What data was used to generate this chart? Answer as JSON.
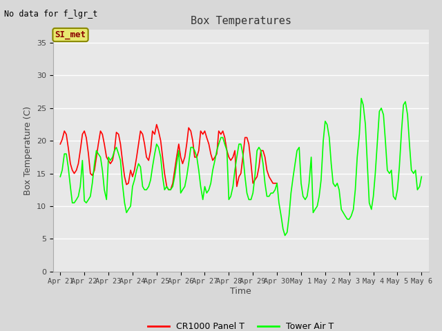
{
  "title": "Box Temperatures",
  "no_data_text": "No data for f_lgr_t",
  "station_label": "SI_met",
  "ylabel": "Box Temperature (C)",
  "xlabel": "Time",
  "ylim": [
    0,
    37
  ],
  "yticks": [
    0,
    5,
    10,
    15,
    20,
    25,
    30,
    35
  ],
  "fig_bg_color": "#d8d8d8",
  "plot_bg_color": "#e8e8e8",
  "grid_color": "white",
  "legend_entries": [
    "CR1000 Panel T",
    "Tower Air T"
  ],
  "x_tick_labels": [
    "Apr 21",
    "Apr 22",
    "Apr 23",
    "Apr 24",
    "Apr 25",
    "Apr 26",
    "Apr 27",
    "Apr 28",
    "Apr 29",
    "Apr 30",
    "May 1",
    "May 2",
    "May 3",
    "May 4",
    "May 5",
    "May 6"
  ],
  "red_x": [
    0.0,
    0.08,
    0.17,
    0.25,
    0.33,
    0.42,
    0.5,
    0.58,
    0.67,
    0.75,
    0.83,
    0.92,
    1.0,
    1.08,
    1.17,
    1.25,
    1.33,
    1.42,
    1.5,
    1.58,
    1.67,
    1.75,
    1.83,
    1.92,
    2.0,
    2.08,
    2.17,
    2.25,
    2.33,
    2.42,
    2.5,
    2.58,
    2.67,
    2.75,
    2.83,
    2.92,
    3.0,
    3.08,
    3.17,
    3.25,
    3.33,
    3.42,
    3.5,
    3.58,
    3.67,
    3.75,
    3.83,
    3.92,
    4.0,
    4.08,
    4.17,
    4.25,
    4.33,
    4.42,
    4.5,
    4.58,
    4.67,
    4.75,
    4.83,
    4.92,
    5.0,
    5.08,
    5.17,
    5.25,
    5.33,
    5.42,
    5.5,
    5.58,
    5.67,
    5.75,
    5.83,
    5.92,
    6.0,
    6.08,
    6.17,
    6.25,
    6.33,
    6.42,
    6.5,
    6.58,
    6.67,
    6.75,
    6.83,
    6.92,
    7.0,
    7.08,
    7.17,
    7.25,
    7.33,
    7.42,
    7.5,
    7.58,
    7.67,
    7.75,
    7.83,
    7.92,
    8.0,
    8.08,
    8.17,
    8.25,
    8.33,
    8.42,
    8.5,
    8.58,
    8.67,
    8.75,
    8.83,
    8.92,
    9.0
  ],
  "red_y": [
    19.5,
    20.2,
    21.5,
    21.0,
    19.0,
    16.5,
    15.5,
    15.0,
    15.5,
    16.5,
    18.5,
    21.0,
    21.5,
    20.5,
    18.0,
    15.0,
    14.7,
    15.5,
    17.5,
    19.5,
    21.5,
    21.0,
    19.5,
    17.5,
    17.0,
    16.5,
    17.0,
    18.5,
    21.3,
    21.0,
    19.5,
    17.0,
    14.5,
    13.3,
    13.5,
    15.5,
    14.5,
    15.5,
    17.5,
    19.5,
    21.5,
    21.0,
    19.5,
    17.5,
    17.0,
    18.5,
    21.5,
    21.0,
    22.5,
    21.5,
    20.0,
    17.5,
    15.0,
    13.0,
    12.5,
    12.5,
    13.5,
    15.5,
    17.5,
    19.5,
    17.5,
    16.5,
    17.5,
    19.5,
    22.0,
    21.5,
    20.0,
    17.5,
    17.5,
    18.5,
    21.5,
    21.0,
    21.5,
    20.5,
    19.5,
    18.0,
    17.0,
    17.5,
    18.0,
    21.5,
    21.0,
    21.5,
    20.5,
    18.5,
    17.5,
    17.0,
    17.5,
    18.5,
    13.0,
    14.5,
    15.0,
    17.5,
    20.5,
    20.5,
    19.5,
    16.5,
    13.5,
    14.0,
    14.5,
    16.0,
    18.5,
    18.5,
    17.5,
    15.5,
    14.5,
    14.0,
    13.5,
    13.5,
    13.5
  ],
  "green_x": [
    0.0,
    0.08,
    0.17,
    0.25,
    0.33,
    0.42,
    0.5,
    0.58,
    0.67,
    0.75,
    0.83,
    0.92,
    1.0,
    1.08,
    1.17,
    1.25,
    1.33,
    1.42,
    1.5,
    1.58,
    1.67,
    1.75,
    1.83,
    1.92,
    2.0,
    2.08,
    2.17,
    2.25,
    2.33,
    2.42,
    2.5,
    2.58,
    2.67,
    2.75,
    2.83,
    2.92,
    3.0,
    3.08,
    3.17,
    3.25,
    3.33,
    3.42,
    3.5,
    3.58,
    3.67,
    3.75,
    3.83,
    3.92,
    4.0,
    4.08,
    4.17,
    4.25,
    4.33,
    4.42,
    4.5,
    4.58,
    4.67,
    4.75,
    4.83,
    4.92,
    5.0,
    5.08,
    5.17,
    5.25,
    5.33,
    5.42,
    5.5,
    5.58,
    5.67,
    5.75,
    5.83,
    5.92,
    6.0,
    6.08,
    6.17,
    6.25,
    6.33,
    6.42,
    6.5,
    6.58,
    6.67,
    6.75,
    6.83,
    6.92,
    7.0,
    7.08,
    7.17,
    7.25,
    7.33,
    7.42,
    7.5,
    7.58,
    7.67,
    7.75,
    7.83,
    7.92,
    8.0,
    8.08,
    8.17,
    8.25,
    8.33,
    8.42,
    8.5,
    8.58,
    8.67,
    8.75,
    8.83,
    8.92,
    9.0,
    9.08,
    9.17,
    9.25,
    9.33,
    9.42,
    9.5,
    9.58,
    9.67,
    9.75,
    9.83,
    9.92,
    10.0,
    10.08,
    10.17,
    10.25,
    10.33,
    10.42,
    10.5,
    10.58,
    10.67,
    10.75,
    10.83,
    10.92,
    11.0,
    11.08,
    11.17,
    11.25,
    11.33,
    11.42,
    11.5,
    11.58,
    11.67,
    11.75,
    11.83,
    11.92,
    12.0,
    12.08,
    12.17,
    12.25,
    12.33,
    12.42,
    12.5,
    12.58,
    12.67,
    12.75,
    12.83,
    12.92,
    13.0,
    13.08,
    13.17,
    13.25,
    13.33,
    13.42,
    13.5,
    13.58,
    13.67,
    13.75,
    13.83,
    13.92,
    14.0,
    14.08,
    14.17,
    14.25,
    14.33,
    14.42,
    14.5,
    14.58,
    14.67,
    14.75,
    14.83,
    14.92,
    15.0
  ],
  "green_y": [
    14.5,
    15.5,
    18.0,
    18.0,
    16.0,
    13.0,
    10.5,
    10.5,
    11.0,
    11.5,
    13.0,
    17.0,
    10.8,
    10.5,
    11.0,
    11.5,
    13.5,
    16.5,
    18.5,
    18.0,
    17.5,
    15.5,
    12.5,
    11.0,
    17.5,
    17.0,
    17.5,
    18.5,
    19.0,
    18.0,
    17.0,
    13.5,
    10.5,
    9.0,
    9.5,
    10.0,
    13.0,
    14.0,
    15.5,
    16.5,
    16.0,
    13.0,
    12.5,
    12.5,
    13.0,
    14.0,
    16.0,
    18.0,
    19.5,
    19.0,
    17.5,
    14.5,
    12.5,
    13.0,
    12.5,
    12.5,
    13.0,
    14.5,
    16.5,
    18.5,
    12.0,
    12.5,
    13.0,
    14.5,
    16.5,
    19.0,
    19.0,
    18.5,
    17.5,
    15.5,
    13.0,
    11.0,
    13.0,
    12.0,
    12.5,
    13.5,
    15.5,
    17.0,
    18.5,
    19.5,
    20.5,
    20.5,
    19.5,
    18.5,
    11.0,
    11.5,
    13.0,
    15.5,
    17.5,
    19.5,
    19.5,
    18.0,
    14.5,
    12.0,
    11.0,
    11.0,
    12.0,
    14.5,
    18.5,
    19.0,
    18.5,
    16.5,
    13.5,
    11.5,
    11.5,
    12.0,
    12.0,
    12.5,
    13.5,
    10.5,
    8.5,
    6.5,
    5.5,
    6.0,
    8.5,
    12.0,
    14.5,
    16.5,
    18.5,
    19.0,
    13.5,
    11.5,
    11.0,
    11.5,
    13.5,
    17.5,
    9.0,
    9.5,
    10.0,
    11.5,
    14.0,
    20.0,
    23.0,
    22.5,
    20.5,
    16.5,
    13.5,
    13.0,
    13.5,
    12.5,
    9.5,
    9.0,
    8.5,
    8.0,
    8.0,
    8.5,
    9.5,
    12.5,
    17.5,
    21.0,
    26.5,
    25.5,
    22.5,
    16.5,
    10.5,
    9.5,
    11.5,
    15.0,
    20.0,
    24.5,
    25.0,
    24.0,
    20.0,
    15.5,
    15.0,
    15.5,
    11.5,
    11.0,
    12.5,
    16.0,
    21.5,
    25.5,
    26.0,
    24.0,
    19.5,
    15.5,
    15.0,
    15.5,
    12.5,
    13.0,
    14.5
  ]
}
